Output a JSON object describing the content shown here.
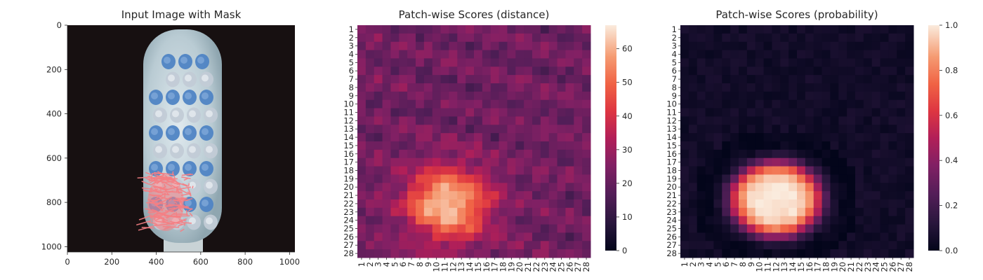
{
  "chart_data": [
    {
      "type": "image",
      "title": "Input Image with Mask",
      "x_ticks": [
        "0",
        "200",
        "400",
        "600",
        "800",
        "1000"
      ],
      "y_ticks": [
        "0",
        "200",
        "400",
        "600",
        "800",
        "1000"
      ],
      "xlim": [
        0,
        1024
      ],
      "ylim": [
        1024,
        0
      ]
    },
    {
      "type": "heatmap",
      "title": "Patch-wise Scores (distance)",
      "x_categories": [
        "1",
        "2",
        "3",
        "4",
        "5",
        "6",
        "7",
        "8",
        "9",
        "10",
        "11",
        "12",
        "13",
        "14",
        "15",
        "16",
        "17",
        "18",
        "19",
        "20",
        "21",
        "22",
        "23",
        "24",
        "25",
        "26",
        "27",
        "28"
      ],
      "y_categories": [
        "1",
        "2",
        "3",
        "4",
        "5",
        "6",
        "7",
        "8",
        "9",
        "10",
        "11",
        "12",
        "13",
        "14",
        "15",
        "16",
        "17",
        "18",
        "19",
        "20",
        "21",
        "22",
        "23",
        "24",
        "25",
        "26",
        "27",
        "28"
      ],
      "colorbar_ticks": [
        "0",
        "10",
        "20",
        "30",
        "40",
        "50",
        "60"
      ],
      "value_range": [
        0,
        67
      ],
      "peak": {
        "row": 21,
        "col": 8,
        "value": 67
      }
    },
    {
      "type": "heatmap",
      "title": "Patch-wise Scores (probability)",
      "x_categories": [
        "1",
        "2",
        "3",
        "4",
        "5",
        "6",
        "7",
        "8",
        "9",
        "10",
        "11",
        "12",
        "13",
        "14",
        "15",
        "16",
        "17",
        "18",
        "19",
        "20",
        "21",
        "22",
        "23",
        "24",
        "25",
        "26",
        "27",
        "28"
      ],
      "y_categories": [
        "1",
        "2",
        "3",
        "4",
        "5",
        "6",
        "7",
        "8",
        "9",
        "10",
        "11",
        "12",
        "13",
        "14",
        "15",
        "16",
        "17",
        "18",
        "19",
        "20",
        "21",
        "22",
        "23",
        "24",
        "25",
        "26",
        "27",
        "28"
      ],
      "colorbar_ticks": [
        "0.0",
        "0.2",
        "0.4",
        "0.6",
        "0.8",
        "1.0"
      ],
      "value_range": [
        0,
        1
      ]
    }
  ]
}
